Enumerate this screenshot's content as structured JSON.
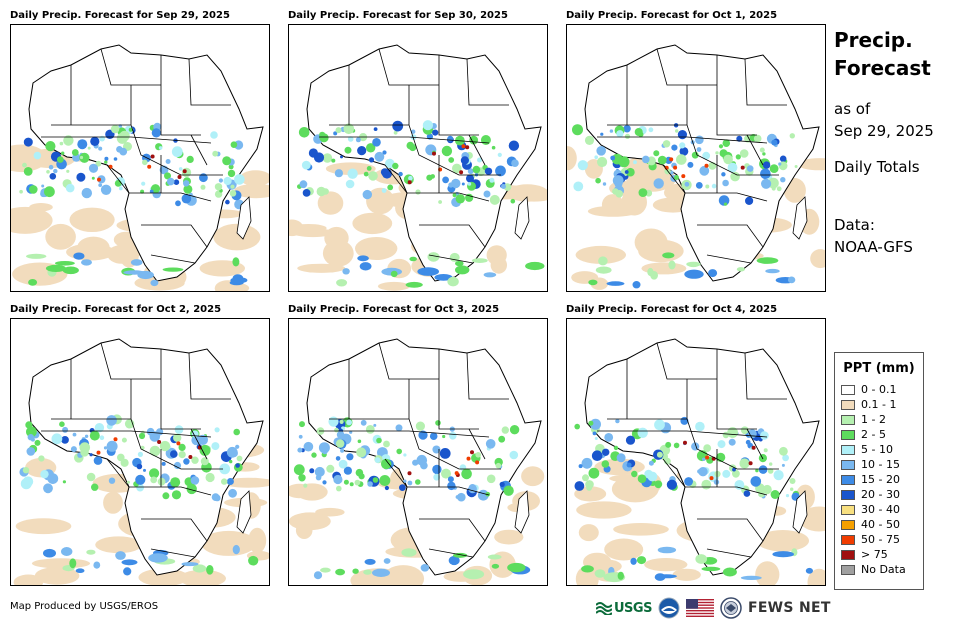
{
  "panels": [
    {
      "title": "Daily Precip. Forecast for Sep 29, 2025"
    },
    {
      "title": "Daily Precip. Forecast for Sep 30, 2025"
    },
    {
      "title": "Daily Precip. Forecast for Oct 1, 2025"
    },
    {
      "title": "Daily Precip. Forecast for Oct 2, 2025"
    },
    {
      "title": "Daily Precip. Forecast for Oct 3, 2025"
    },
    {
      "title": "Daily Precip. Forecast for Oct 4, 2025"
    }
  ],
  "sidebar": {
    "title_line1": "Precip.",
    "title_line2": "Forecast",
    "asof_line1": "as of",
    "asof_line2": "Sep 29, 2025",
    "totals": "Daily Totals",
    "data_line1": "Data:",
    "data_line2": "NOAA-GFS"
  },
  "legend": {
    "title": "PPT (mm)",
    "items": [
      {
        "label": "0 - 0.1",
        "color": "#ffffff"
      },
      {
        "label": "0.1 - 1",
        "color": "#f2dcbd"
      },
      {
        "label": "1 - 2",
        "color": "#b5f0b0"
      },
      {
        "label": "2 - 5",
        "color": "#5ddc5d"
      },
      {
        "label": "5 - 10",
        "color": "#b0f0f8"
      },
      {
        "label": "10 - 15",
        "color": "#7ab8f0"
      },
      {
        "label": "15 - 20",
        "color": "#3d8be6"
      },
      {
        "label": "20 - 30",
        "color": "#1a55cc"
      },
      {
        "label": "30 - 40",
        "color": "#f8e080"
      },
      {
        "label": "40 - 50",
        "color": "#f5a000"
      },
      {
        "label": "50 - 75",
        "color": "#f03c00"
      },
      {
        "label": "> 75",
        "color": "#a01010"
      },
      {
        "label": "No Data",
        "color": "#a0a0a0"
      }
    ]
  },
  "footer": {
    "credit": "Map Produced by USGS/EROS",
    "usgs": "USGS",
    "fews": "FEWS NET"
  }
}
